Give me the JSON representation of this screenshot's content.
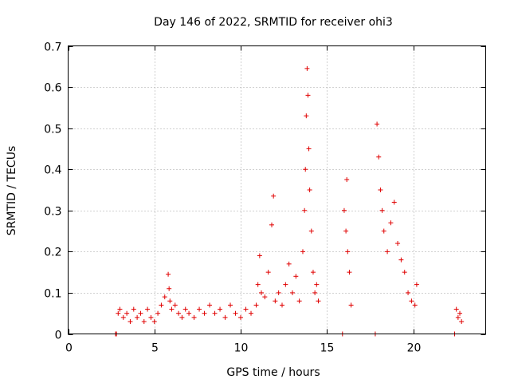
{
  "chart_data": {
    "type": "scatter",
    "title": "Day 146 of 2022, SRMTID for receiver ohi3",
    "xlabel": "GPS time / hours",
    "ylabel": "SRMTID / TECUs",
    "xlim": [
      0,
      24.2
    ],
    "ylim": [
      0,
      0.7
    ],
    "xticks": [
      0,
      5,
      10,
      15,
      20
    ],
    "yticks": [
      0,
      0.1,
      0.2,
      0.3,
      0.4,
      0.5,
      0.6,
      0.7
    ],
    "grid": true,
    "marker": "plus",
    "color": "#e00000",
    "series": [
      {
        "name": "SRMTID",
        "x": [
          2.75,
          2.8,
          2.9,
          3.0,
          3.2,
          3.4,
          3.6,
          3.8,
          4.0,
          4.2,
          4.4,
          4.6,
          4.8,
          5.0,
          5.2,
          5.4,
          5.6,
          5.8,
          5.85,
          5.9,
          6.0,
          6.2,
          6.4,
          6.6,
          6.8,
          7.0,
          7.3,
          7.6,
          7.9,
          8.2,
          8.5,
          8.8,
          9.1,
          9.4,
          9.7,
          10.0,
          10.3,
          10.6,
          10.9,
          11.0,
          11.1,
          11.2,
          11.4,
          11.6,
          11.8,
          11.9,
          12.0,
          12.2,
          12.4,
          12.6,
          12.8,
          13.0,
          13.2,
          13.4,
          13.6,
          13.7,
          13.75,
          13.8,
          13.85,
          13.9,
          13.95,
          14.0,
          14.1,
          14.2,
          14.3,
          14.4,
          14.5,
          15.9,
          16.0,
          16.1,
          16.15,
          16.2,
          16.3,
          16.4,
          17.8,
          17.9,
          18.0,
          18.1,
          18.2,
          18.3,
          18.5,
          18.7,
          18.9,
          19.1,
          19.3,
          19.5,
          19.7,
          19.9,
          20.1,
          20.2,
          22.4,
          22.5,
          22.6,
          22.7,
          22.8
        ],
        "y": [
          0.0,
          0.0,
          0.05,
          0.06,
          0.04,
          0.05,
          0.03,
          0.06,
          0.04,
          0.05,
          0.03,
          0.06,
          0.04,
          0.03,
          0.05,
          0.07,
          0.09,
          0.145,
          0.11,
          0.08,
          0.06,
          0.07,
          0.05,
          0.04,
          0.06,
          0.05,
          0.04,
          0.06,
          0.05,
          0.07,
          0.05,
          0.06,
          0.04,
          0.07,
          0.05,
          0.04,
          0.06,
          0.05,
          0.07,
          0.12,
          0.19,
          0.1,
          0.09,
          0.15,
          0.265,
          0.335,
          0.08,
          0.1,
          0.07,
          0.12,
          0.17,
          0.1,
          0.14,
          0.08,
          0.2,
          0.3,
          0.4,
          0.53,
          0.645,
          0.58,
          0.45,
          0.35,
          0.25,
          0.15,
          0.1,
          0.12,
          0.08,
          0.0,
          0.3,
          0.25,
          0.375,
          0.2,
          0.15,
          0.07,
          0.0,
          0.51,
          0.43,
          0.35,
          0.3,
          0.25,
          0.2,
          0.27,
          0.32,
          0.22,
          0.18,
          0.15,
          0.1,
          0.08,
          0.07,
          0.12,
          0.0,
          0.06,
          0.04,
          0.05,
          0.03
        ]
      }
    ]
  }
}
